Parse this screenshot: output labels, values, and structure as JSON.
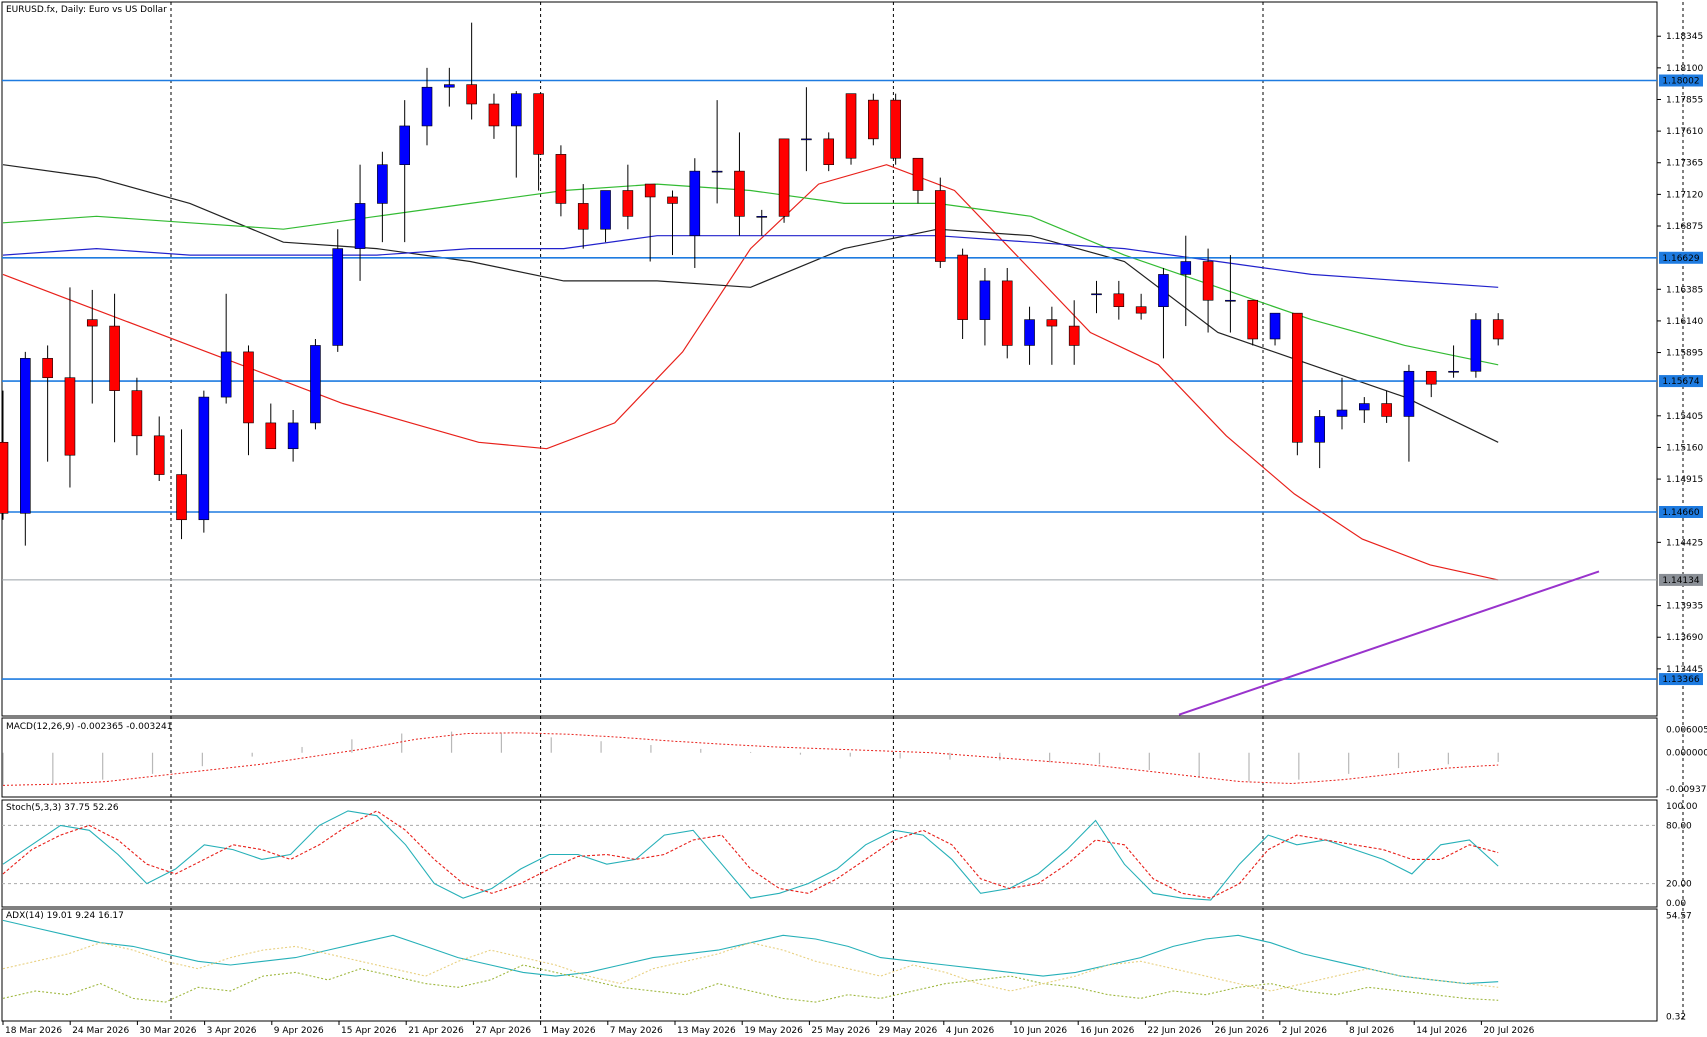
{
  "header": {
    "symbol_title": "EURUSD.fx, Daily:  Euro vs US Dollar"
  },
  "indicator_titles": {
    "macd": "MACD(12,26,9) -0.002365 -0.003241",
    "stoch": "Stoch(5,3,3) 37.75 52.26",
    "adx": "ADX(14) 19.01 9.24 16.17"
  },
  "colors": {
    "bull": "#0000ff",
    "bear": "#ff0000",
    "hline": "#1e7be0",
    "trendline": "#9933cc",
    "ma_red": "#e8201a",
    "ma_black": "#222222",
    "ma_green": "#33bb33",
    "ma_blue": "#2222cc",
    "stoch_main": "#26b0b8",
    "stoch_signal": "#e8201a",
    "adx": "#26b0b8",
    "plus_di": "#a0b840",
    "minus_di": "#e8d080"
  },
  "chart_data": [
    {
      "type": "candlestick",
      "panel": "price",
      "timeframe": "Daily",
      "symbol": "EURUSD.fx",
      "ylim": [
        1.1308,
        1.1861
      ],
      "price_ticks": [
        "1.18345",
        "1.18100",
        "1.17855",
        "1.17610",
        "1.17365",
        "1.17120",
        "1.16875",
        "1.16385",
        "1.16140",
        "1.15895",
        "1.15405",
        "1.15160",
        "1.14915",
        "1.14425",
        "1.13935",
        "1.13690",
        "1.13445"
      ],
      "x_labels": [
        {
          "label": "18 Mar 2026",
          "index": 0
        },
        {
          "label": "24 Mar 2026",
          "index": 4
        },
        {
          "label": "30 Mar 2026",
          "index": 8
        },
        {
          "label": "3 Apr 2026",
          "index": 12
        },
        {
          "label": "9 Apr 2026",
          "index": 16
        },
        {
          "label": "15 Apr 2026",
          "index": 20
        },
        {
          "label": "21 Apr 2026",
          "index": 24
        },
        {
          "label": "27 Apr 2026",
          "index": 28
        },
        {
          "label": "1 May 2026",
          "index": 32
        },
        {
          "label": "7 May 2026",
          "index": 36
        },
        {
          "label": "13 May 2026",
          "index": 40
        },
        {
          "label": "19 May 2026",
          "index": 44
        },
        {
          "label": "25 May 2026",
          "index": 48
        },
        {
          "label": "29 May 2026",
          "index": 52
        },
        {
          "label": "4 Jun 2026",
          "index": 56
        },
        {
          "label": "10 Jun 2026",
          "index": 60
        },
        {
          "label": "16 Jun 2026",
          "index": 64
        },
        {
          "label": "22 Jun 2026",
          "index": 68
        },
        {
          "label": "26 Jun 2026",
          "index": 72
        },
        {
          "label": "2 Jul 2026",
          "index": 76
        },
        {
          "label": "8 Jul 2026",
          "index": 80
        },
        {
          "label": "14 Jul 2026",
          "index": 84
        },
        {
          "label": "20 Jul 2026",
          "index": 88
        }
      ],
      "period_separators": [
        10,
        32,
        53,
        75,
        100
      ],
      "horizontal_levels": [
        {
          "value": 1.18002,
          "label": "1.18002"
        },
        {
          "value": 1.16629,
          "label": "1.16629"
        },
        {
          "value": 1.15674,
          "label": "1.15674"
        },
        {
          "value": 1.1466,
          "label": "1.14660"
        },
        {
          "value": 1.13366,
          "label": "1.13366"
        }
      ],
      "current_price": {
        "value": 1.14134,
        "label": "1.14134"
      },
      "trendline": {
        "from": {
          "index": 70,
          "value": 1.1309
        },
        "to": {
          "index": 95,
          "value": 1.142
        }
      },
      "candles": [
        [
          1.152,
          1.156,
          1.146,
          1.1465
        ],
        [
          1.1465,
          1.159,
          1.144,
          1.1585
        ],
        [
          1.1585,
          1.1595,
          1.1505,
          1.157
        ],
        [
          1.157,
          1.164,
          1.1485,
          1.151
        ],
        [
          1.1615,
          1.1638,
          1.155,
          1.161
        ],
        [
          1.161,
          1.1635,
          1.152,
          1.156
        ],
        [
          1.156,
          1.157,
          1.151,
          1.1525
        ],
        [
          1.1525,
          1.154,
          1.149,
          1.1495
        ],
        [
          1.1495,
          1.153,
          1.1445,
          1.146
        ],
        [
          1.146,
          1.156,
          1.145,
          1.1555
        ],
        [
          1.1555,
          1.1635,
          1.155,
          1.159
        ],
        [
          1.159,
          1.1595,
          1.151,
          1.1535
        ],
        [
          1.1535,
          1.155,
          1.1515,
          1.1515
        ],
        [
          1.1515,
          1.1545,
          1.1505,
          1.1535
        ],
        [
          1.1535,
          1.16,
          1.153,
          1.1595
        ],
        [
          1.1595,
          1.1685,
          1.159,
          1.167
        ],
        [
          1.167,
          1.1735,
          1.1645,
          1.1705
        ],
        [
          1.1705,
          1.1745,
          1.1675,
          1.1735
        ],
        [
          1.1735,
          1.1785,
          1.1675,
          1.1765
        ],
        [
          1.1765,
          1.181,
          1.175,
          1.1795
        ],
        [
          1.1795,
          1.181,
          1.178,
          1.1797
        ],
        [
          1.1797,
          1.1845,
          1.177,
          1.1782
        ],
        [
          1.1782,
          1.179,
          1.1755,
          1.1765
        ],
        [
          1.1765,
          1.1792,
          1.1725,
          1.179
        ],
        [
          1.179,
          1.179,
          1.1715,
          1.1743
        ],
        [
          1.1743,
          1.175,
          1.1695,
          1.1705
        ],
        [
          1.1705,
          1.172,
          1.167,
          1.1685
        ],
        [
          1.1685,
          1.1715,
          1.1675,
          1.1715
        ],
        [
          1.1715,
          1.1735,
          1.1685,
          1.1695
        ],
        [
          1.172,
          1.172,
          1.166,
          1.171
        ],
        [
          1.171,
          1.1715,
          1.1665,
          1.1705
        ],
        [
          1.168,
          1.174,
          1.1655,
          1.173
        ],
        [
          1.173,
          1.1785,
          1.1705,
          1.173
        ],
        [
          1.173,
          1.176,
          1.168,
          1.1695
        ],
        [
          1.1695,
          1.17,
          1.168,
          1.1695
        ],
        [
          1.1755,
          1.1755,
          1.169,
          1.1695
        ],
        [
          1.1755,
          1.1795,
          1.173,
          1.1755
        ],
        [
          1.1755,
          1.176,
          1.173,
          1.1735
        ],
        [
          1.179,
          1.179,
          1.1735,
          1.174
        ],
        [
          1.1785,
          1.179,
          1.175,
          1.1755
        ],
        [
          1.1785,
          1.179,
          1.1735,
          1.174
        ],
        [
          1.174,
          1.174,
          1.1705,
          1.1715
        ],
        [
          1.1715,
          1.1725,
          1.1655,
          1.166
        ],
        [
          1.1665,
          1.167,
          1.16,
          1.1615
        ],
        [
          1.1615,
          1.1655,
          1.1595,
          1.1645
        ],
        [
          1.1645,
          1.1655,
          1.1585,
          1.1595
        ],
        [
          1.1595,
          1.1625,
          1.158,
          1.1615
        ],
        [
          1.1615,
          1.1625,
          1.158,
          1.161
        ],
        [
          1.161,
          1.163,
          1.158,
          1.1595
        ],
        [
          1.1635,
          1.1645,
          1.162,
          1.1635
        ],
        [
          1.1635,
          1.1645,
          1.1615,
          1.1625
        ],
        [
          1.1625,
          1.1635,
          1.1615,
          1.162
        ],
        [
          1.1625,
          1.1655,
          1.1585,
          1.165
        ],
        [
          1.165,
          1.168,
          1.161,
          1.166
        ],
        [
          1.166,
          1.167,
          1.1605,
          1.163
        ],
        [
          1.163,
          1.1665,
          1.1605,
          1.163
        ],
        [
          1.163,
          1.163,
          1.1595,
          1.16
        ],
        [
          1.16,
          1.162,
          1.1595,
          1.162
        ],
        [
          1.162,
          1.162,
          1.151,
          1.152
        ],
        [
          1.152,
          1.1545,
          1.15,
          1.154
        ],
        [
          1.154,
          1.157,
          1.153,
          1.1545
        ],
        [
          1.1545,
          1.1555,
          1.1535,
          1.155
        ],
        [
          1.155,
          1.156,
          1.1535,
          1.154
        ],
        [
          1.154,
          1.158,
          1.1505,
          1.1575
        ],
        [
          1.1575,
          1.1575,
          1.1555,
          1.1565
        ],
        [
          1.1575,
          1.1595,
          1.157,
          1.1575
        ],
        [
          1.1575,
          1.162,
          1.157,
          1.1615
        ],
        [
          1.1615,
          1.162,
          1.1595,
          1.16
        ]
      ],
      "moving_averages": [
        {
          "color_key": "ma_red",
          "values": [
            1.165,
            1.163,
            1.161,
            1.159,
            1.157,
            1.155,
            1.1535,
            1.152,
            1.1515,
            1.1535,
            1.159,
            1.167,
            1.172,
            1.1735,
            1.1715,
            1.166,
            1.1605,
            1.158,
            1.1525,
            1.148,
            1.1445,
            1.1425,
            1.14134
          ]
        },
        {
          "color_key": "ma_black",
          "values": [
            1.1735,
            1.1725,
            1.1705,
            1.1675,
            1.167,
            1.166,
            1.1645,
            1.1645,
            1.164,
            1.167,
            1.1685,
            1.168,
            1.166,
            1.1605,
            1.158,
            1.1555,
            1.152
          ]
        },
        {
          "color_key": "ma_green",
          "values": [
            1.169,
            1.1695,
            1.169,
            1.1685,
            1.1695,
            1.1705,
            1.1715,
            1.172,
            1.1715,
            1.1705,
            1.1705,
            1.1695,
            1.1665,
            1.164,
            1.1615,
            1.1595,
            1.158
          ]
        },
        {
          "color_key": "ma_blue",
          "values": [
            1.1665,
            1.167,
            1.1665,
            1.1665,
            1.1665,
            1.167,
            1.167,
            1.168,
            1.168,
            1.168,
            1.168,
            1.1675,
            1.167,
            1.166,
            1.165,
            1.1645,
            1.164
          ]
        }
      ]
    },
    {
      "type": "bar",
      "panel": "macd",
      "title": "MACD(12,26,9) -0.002365 -0.003241",
      "ylim": [
        -0.011,
        0.008
      ],
      "ticks": [
        "0.006005",
        "0.000000",
        "-0.009374"
      ],
      "histogram": [
        -0.0085,
        -0.008,
        -0.007,
        -0.0055,
        -0.0035,
        -0.001,
        0.0015,
        0.0035,
        0.005,
        0.0055,
        0.005,
        0.004,
        0.003,
        0.002,
        0.001,
        0.0002,
        -0.0005,
        -0.001,
        -0.0015,
        -0.0018,
        -0.002,
        -0.0025,
        -0.003,
        -0.0045,
        -0.0065,
        -0.0075,
        -0.007,
        -0.0055,
        -0.004,
        -0.003,
        -0.0024
      ],
      "signal": [
        -0.0085,
        -0.0082,
        -0.0075,
        -0.006,
        -0.0045,
        -0.003,
        -0.001,
        0.001,
        0.0035,
        0.005,
        0.0052,
        0.0048,
        0.004,
        0.003,
        0.0022,
        0.0015,
        0.001,
        0.0005,
        0.0,
        -0.001,
        -0.002,
        -0.003,
        -0.0045,
        -0.006,
        -0.0075,
        -0.008,
        -0.007,
        -0.0055,
        -0.004,
        -0.0032
      ]
    },
    {
      "type": "line",
      "panel": "stoch",
      "title": "Stoch(5,3,3) 37.75 52.26",
      "ylim": [
        0,
        100
      ],
      "ticks": [
        "100.00",
        "80.00",
        "20.00",
        "0.00"
      ],
      "levels": [
        80,
        20
      ],
      "series": [
        {
          "color_key": "stoch_main",
          "values": [
            40,
            60,
            80,
            75,
            50,
            20,
            35,
            60,
            55,
            45,
            50,
            80,
            95,
            90,
            60,
            20,
            5,
            15,
            35,
            50,
            50,
            40,
            45,
            70,
            75,
            40,
            5,
            10,
            20,
            35,
            60,
            75,
            70,
            45,
            10,
            15,
            30,
            55,
            85,
            40,
            10,
            5,
            3,
            40,
            70,
            60,
            65,
            55,
            45,
            30,
            60,
            65,
            38
          ]
        },
        {
          "color_key": "stoch_signal",
          "values": [
            30,
            55,
            70,
            80,
            65,
            40,
            30,
            45,
            60,
            55,
            45,
            60,
            80,
            95,
            75,
            45,
            20,
            10,
            20,
            35,
            48,
            50,
            45,
            50,
            65,
            70,
            35,
            15,
            10,
            25,
            45,
            65,
            75,
            60,
            25,
            15,
            20,
            40,
            65,
            60,
            25,
            10,
            5,
            20,
            55,
            70,
            65,
            60,
            55,
            45,
            45,
            60,
            52
          ]
        }
      ]
    },
    {
      "type": "line",
      "panel": "adx",
      "title": "ADX(14) 19.01 9.24 16.17",
      "ylim": [
        0,
        56
      ],
      "ticks": [
        "54.57",
        "0.32"
      ],
      "series": [
        {
          "name": "ADX",
          "color_key": "adx",
          "values": [
            52,
            48,
            44,
            40,
            38,
            34,
            30,
            28,
            30,
            32,
            36,
            40,
            44,
            38,
            32,
            28,
            24,
            22,
            24,
            28,
            32,
            34,
            36,
            40,
            44,
            42,
            38,
            32,
            30,
            28,
            26,
            24,
            22,
            24,
            28,
            32,
            38,
            42,
            44,
            40,
            34,
            30,
            26,
            22,
            20,
            18,
            19
          ]
        },
        {
          "name": "+DI",
          "color_key": "plus_di",
          "values": [
            10,
            14,
            12,
            18,
            10,
            8,
            16,
            14,
            22,
            24,
            20,
            26,
            22,
            18,
            16,
            20,
            28,
            24,
            20,
            16,
            14,
            12,
            18,
            14,
            10,
            8,
            12,
            10,
            14,
            18,
            20,
            22,
            18,
            16,
            12,
            10,
            14,
            12,
            16,
            18,
            14,
            12,
            16,
            14,
            12,
            10,
            9
          ]
        },
        {
          "name": "-DI",
          "color_key": "minus_di",
          "values": [
            26,
            30,
            34,
            40,
            36,
            30,
            26,
            32,
            36,
            38,
            34,
            30,
            26,
            22,
            30,
            36,
            32,
            28,
            22,
            18,
            26,
            30,
            34,
            40,
            36,
            30,
            26,
            22,
            28,
            24,
            18,
            14,
            18,
            22,
            28,
            30,
            26,
            22,
            18,
            14,
            18,
            22,
            26,
            22,
            20,
            18,
            16
          ]
        }
      ]
    }
  ]
}
